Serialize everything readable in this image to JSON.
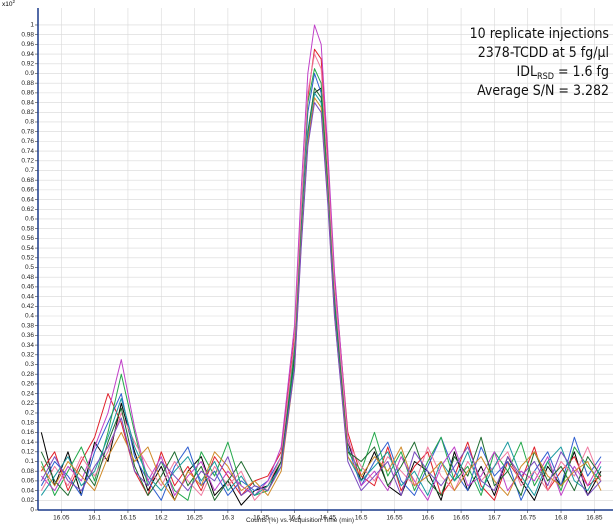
{
  "chart_data": {
    "type": "line",
    "y_scale": {
      "base": "x10",
      "exponent": "2"
    },
    "x_label": "Counts (%) vs. Acquisition Time (min)",
    "annotation": {
      "lines": [
        "10 replicate injections",
        "2378-TCDD at 5 fg/µl"
      ],
      "idl": {
        "label": "IDL",
        "subscript": "RSD",
        "value": "= 1.6 fg"
      },
      "sn": "Average S/N = 3.282"
    },
    "xlim": [
      16.015,
      16.878
    ],
    "ylim": [
      0,
      1.035
    ],
    "xticks": [
      16.05,
      16.1,
      16.15,
      16.2,
      16.25,
      16.3,
      16.35,
      16.4,
      16.45,
      16.5,
      16.55,
      16.6,
      16.65,
      16.7,
      16.75,
      16.8,
      16.85
    ],
    "yticks": [
      0,
      0.02,
      0.04,
      0.06,
      0.08,
      0.1,
      0.12,
      0.14,
      0.16,
      0.18,
      0.2,
      0.22,
      0.24,
      0.26,
      0.28,
      0.3,
      0.32,
      0.34,
      0.36,
      0.38,
      0.4,
      0.42,
      0.44,
      0.46,
      0.48,
      0.5,
      0.52,
      0.54,
      0.56,
      0.58,
      0.6,
      0.62,
      0.64,
      0.66,
      0.68,
      0.7,
      0.72,
      0.74,
      0.76,
      0.78,
      0.8,
      0.82,
      0.84,
      0.86,
      0.88,
      0.9,
      0.92,
      0.94,
      0.96,
      0.98,
      1
    ],
    "grid": true,
    "x": [
      16.02,
      16.04,
      16.06,
      16.08,
      16.1,
      16.12,
      16.14,
      16.16,
      16.18,
      16.2,
      16.22,
      16.24,
      16.26,
      16.28,
      16.3,
      16.32,
      16.34,
      16.36,
      16.38,
      16.4,
      16.41,
      16.42,
      16.43,
      16.44,
      16.45,
      16.46,
      16.48,
      16.5,
      16.52,
      16.54,
      16.56,
      16.58,
      16.6,
      16.62,
      16.64,
      16.66,
      16.68,
      16.7,
      16.72,
      16.74,
      16.76,
      16.78,
      16.8,
      16.82,
      16.84,
      16.86
    ],
    "series": [
      {
        "color": "#000000",
        "values": [
          0.16,
          0.05,
          0.12,
          0.03,
          0.14,
          0.1,
          0.22,
          0.12,
          0.04,
          0.09,
          0.02,
          0.08,
          0.11,
          0.03,
          0.06,
          0.01,
          0.04,
          0.05,
          0.1,
          0.32,
          0.55,
          0.76,
          0.86,
          0.87,
          0.68,
          0.45,
          0.14,
          0.06,
          0.12,
          0.05,
          0.03,
          0.1,
          0.08,
          0.02,
          0.12,
          0.04,
          0.09,
          0.03,
          0.11,
          0.06,
          0.02,
          0.09,
          0.05,
          0.12,
          0.03,
          0.08
        ]
      },
      {
        "color": "#e0202a",
        "values": [
          0.08,
          0.12,
          0.04,
          0.1,
          0.15,
          0.24,
          0.18,
          0.08,
          0.03,
          0.12,
          0.05,
          0.09,
          0.04,
          0.11,
          0.07,
          0.03,
          0.06,
          0.07,
          0.12,
          0.36,
          0.62,
          0.85,
          0.95,
          0.93,
          0.72,
          0.48,
          0.16,
          0.07,
          0.05,
          0.13,
          0.04,
          0.09,
          0.12,
          0.03,
          0.07,
          0.14,
          0.05,
          0.02,
          0.1,
          0.06,
          0.13,
          0.04,
          0.08,
          0.11,
          0.05,
          0.07
        ]
      },
      {
        "color": "#2f5fd0",
        "values": [
          0.05,
          0.1,
          0.07,
          0.03,
          0.12,
          0.18,
          0.24,
          0.11,
          0.06,
          0.02,
          0.09,
          0.13,
          0.05,
          0.08,
          0.03,
          0.06,
          0.04,
          0.06,
          0.11,
          0.34,
          0.6,
          0.82,
          0.9,
          0.86,
          0.66,
          0.44,
          0.13,
          0.05,
          0.1,
          0.14,
          0.06,
          0.03,
          0.09,
          0.15,
          0.08,
          0.04,
          0.13,
          0.07,
          0.1,
          0.02,
          0.08,
          0.12,
          0.05,
          0.15,
          0.07,
          0.11
        ]
      },
      {
        "color": "#22a84a",
        "values": [
          0.1,
          0.03,
          0.08,
          0.13,
          0.06,
          0.16,
          0.28,
          0.16,
          0.05,
          0.1,
          0.04,
          0.02,
          0.12,
          0.07,
          0.14,
          0.05,
          0.03,
          0.04,
          0.09,
          0.33,
          0.61,
          0.84,
          0.91,
          0.88,
          0.67,
          0.43,
          0.12,
          0.08,
          0.16,
          0.07,
          0.12,
          0.04,
          0.1,
          0.15,
          0.06,
          0.09,
          0.03,
          0.12,
          0.08,
          0.14,
          0.05,
          0.1,
          0.04,
          0.13,
          0.09,
          0.06
        ]
      },
      {
        "color": "#c040c8",
        "values": [
          0.07,
          0.04,
          0.09,
          0.06,
          0.13,
          0.2,
          0.31,
          0.17,
          0.06,
          0.11,
          0.03,
          0.07,
          0.1,
          0.04,
          0.08,
          0.05,
          0.03,
          0.06,
          0.13,
          0.38,
          0.66,
          0.9,
          1.0,
          0.96,
          0.74,
          0.49,
          0.15,
          0.05,
          0.08,
          0.04,
          0.11,
          0.06,
          0.02,
          0.09,
          0.13,
          0.05,
          0.07,
          0.12,
          0.04,
          0.08,
          0.06,
          0.11,
          0.03,
          0.09,
          0.05,
          0.1
        ]
      },
      {
        "color": "#f07aa0",
        "values": [
          0.04,
          0.09,
          0.05,
          0.11,
          0.07,
          0.12,
          0.2,
          0.14,
          0.09,
          0.05,
          0.1,
          0.06,
          0.03,
          0.09,
          0.05,
          0.08,
          0.02,
          0.05,
          0.11,
          0.35,
          0.62,
          0.86,
          0.94,
          0.91,
          0.7,
          0.46,
          0.14,
          0.09,
          0.06,
          0.11,
          0.08,
          0.05,
          0.13,
          0.07,
          0.04,
          0.1,
          0.06,
          0.09,
          0.12,
          0.05,
          0.08,
          0.04,
          0.1,
          0.07,
          0.13,
          0.06
        ]
      },
      {
        "color": "#1d6b2e",
        "values": [
          0.12,
          0.06,
          0.03,
          0.09,
          0.05,
          0.14,
          0.21,
          0.09,
          0.03,
          0.07,
          0.12,
          0.05,
          0.09,
          0.02,
          0.06,
          0.1,
          0.05,
          0.04,
          0.1,
          0.31,
          0.57,
          0.78,
          0.87,
          0.85,
          0.66,
          0.42,
          0.12,
          0.1,
          0.13,
          0.05,
          0.09,
          0.14,
          0.06,
          0.03,
          0.11,
          0.07,
          0.15,
          0.05,
          0.08,
          0.03,
          0.12,
          0.06,
          0.09,
          0.04,
          0.11,
          0.07
        ]
      },
      {
        "color": "#1a9aa0",
        "values": [
          0.03,
          0.07,
          0.11,
          0.05,
          0.08,
          0.15,
          0.23,
          0.13,
          0.07,
          0.04,
          0.08,
          0.11,
          0.06,
          0.1,
          0.04,
          0.07,
          0.03,
          0.05,
          0.09,
          0.3,
          0.56,
          0.77,
          0.86,
          0.84,
          0.65,
          0.41,
          0.11,
          0.06,
          0.09,
          0.12,
          0.05,
          0.08,
          0.03,
          0.1,
          0.06,
          0.12,
          0.04,
          0.09,
          0.14,
          0.07,
          0.03,
          0.1,
          0.13,
          0.06,
          0.04,
          0.09
        ]
      },
      {
        "color": "#d08a2a",
        "values": [
          0.09,
          0.05,
          0.1,
          0.07,
          0.04,
          0.11,
          0.16,
          0.1,
          0.13,
          0.06,
          0.02,
          0.08,
          0.05,
          0.12,
          0.09,
          0.04,
          0.06,
          0.03,
          0.08,
          0.29,
          0.55,
          0.76,
          0.85,
          0.83,
          0.64,
          0.4,
          0.11,
          0.07,
          0.11,
          0.08,
          0.13,
          0.05,
          0.07,
          0.1,
          0.04,
          0.08,
          0.11,
          0.06,
          0.03,
          0.09,
          0.12,
          0.07,
          0.05,
          0.08,
          0.1,
          0.04
        ]
      },
      {
        "color": "#7a4bbf",
        "values": [
          0.06,
          0.11,
          0.06,
          0.04,
          0.09,
          0.13,
          0.19,
          0.08,
          0.05,
          0.1,
          0.07,
          0.04,
          0.08,
          0.06,
          0.11,
          0.03,
          0.05,
          0.04,
          0.09,
          0.29,
          0.54,
          0.75,
          0.84,
          0.82,
          0.63,
          0.4,
          0.1,
          0.04,
          0.07,
          0.1,
          0.03,
          0.12,
          0.08,
          0.05,
          0.09,
          0.13,
          0.06,
          0.04,
          0.11,
          0.07,
          0.1,
          0.05,
          0.12,
          0.08,
          0.03,
          0.06
        ]
      }
    ]
  }
}
